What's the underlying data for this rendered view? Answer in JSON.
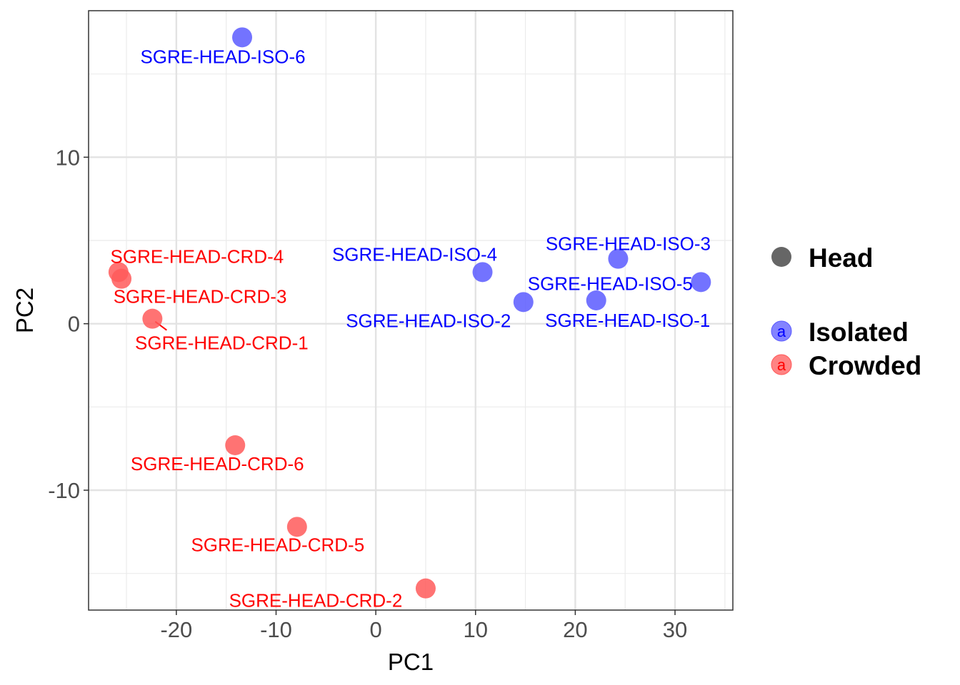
{
  "chart_data": {
    "type": "scatter",
    "xlabel": "PC1",
    "ylabel": "PC2",
    "xlim": [
      -28.8,
      35.8
    ],
    "ylim": [
      -17.2,
      18.8
    ],
    "x_ticks": [
      -20,
      -10,
      0,
      10,
      20,
      30
    ],
    "y_ticks": [
      -10,
      0,
      10
    ],
    "x_tick_labels": [
      "-20",
      "-10",
      "0",
      "10",
      "20",
      "30"
    ],
    "y_tick_labels": [
      "-10",
      "0",
      "10"
    ],
    "grid": true,
    "legend_position": "right",
    "series": [
      {
        "name": "Isolated",
        "color": "#0000ff",
        "point_color": "#5a5aff",
        "points": [
          {
            "label": "SGRE-HEAD-ISO-1",
            "x": 22.1,
            "y": 1.4
          },
          {
            "label": "SGRE-HEAD-ISO-2",
            "x": 14.8,
            "y": 1.3
          },
          {
            "label": "SGRE-HEAD-ISO-3",
            "x": 24.3,
            "y": 3.9
          },
          {
            "label": "SGRE-HEAD-ISO-4",
            "x": 10.7,
            "y": 3.1
          },
          {
            "label": "SGRE-HEAD-ISO-5",
            "x": 32.6,
            "y": 2.5
          },
          {
            "label": "SGRE-HEAD-ISO-6",
            "x": -13.4,
            "y": 17.2
          }
        ]
      },
      {
        "name": "Crowded",
        "color": "#ff0000",
        "point_color": "#ff5a5a",
        "points": [
          {
            "label": "SGRE-HEAD-CRD-1",
            "x": -22.4,
            "y": 0.3
          },
          {
            "label": "SGRE-HEAD-CRD-2",
            "x": 5.0,
            "y": -15.9
          },
          {
            "label": "SGRE-HEAD-CRD-3",
            "x": -25.5,
            "y": 2.7
          },
          {
            "label": "SGRE-HEAD-CRD-4",
            "x": -25.8,
            "y": 3.1
          },
          {
            "label": "SGRE-HEAD-CRD-5",
            "x": -7.9,
            "y": -12.2
          },
          {
            "label": "SGRE-HEAD-CRD-6",
            "x": -14.1,
            "y": -7.3
          }
        ]
      }
    ],
    "legend": {
      "shape_title": "Head",
      "shape_color": "#666666",
      "key_letter": "a",
      "entries": [
        {
          "name": "Isolated",
          "color": "#5a5aff",
          "text_color": "#0000ff"
        },
        {
          "name": "Crowded",
          "color": "#ff5a5a",
          "text_color": "#ff0000"
        }
      ]
    }
  }
}
